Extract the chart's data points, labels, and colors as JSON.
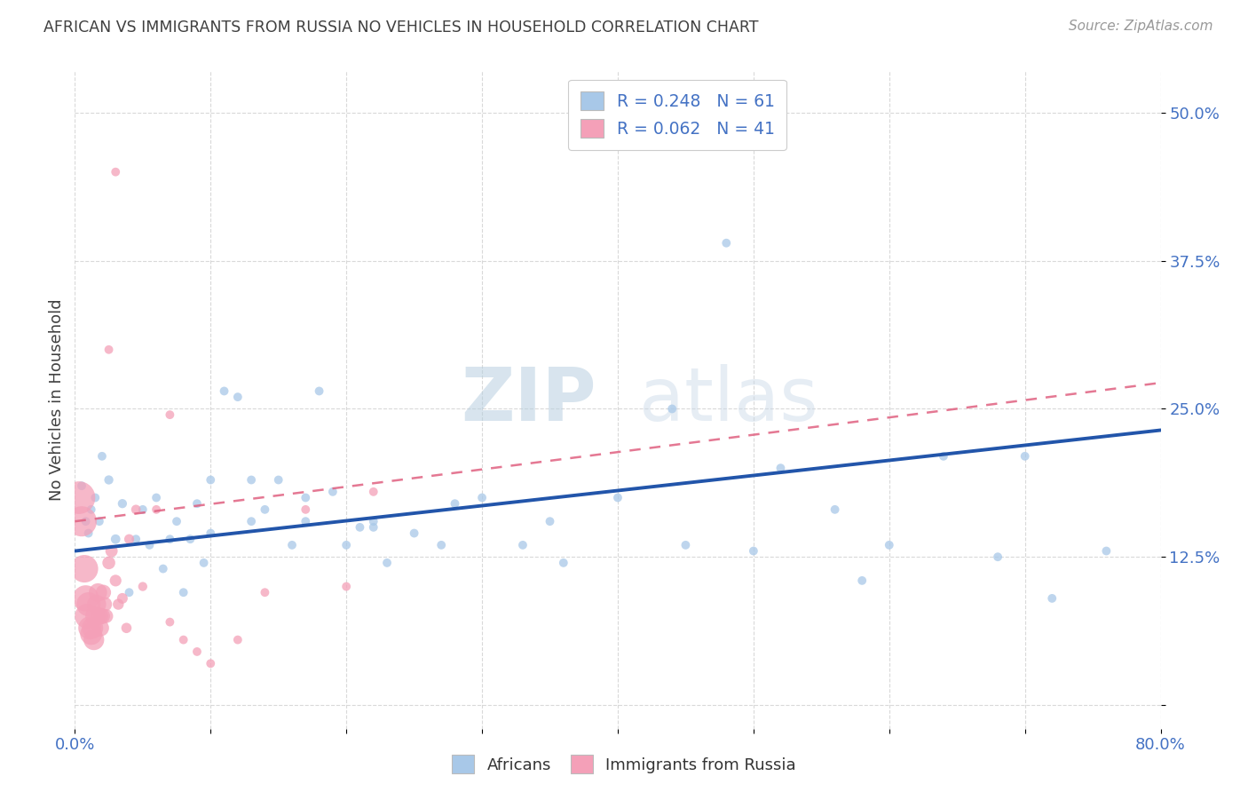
{
  "title": "AFRICAN VS IMMIGRANTS FROM RUSSIA NO VEHICLES IN HOUSEHOLD CORRELATION CHART",
  "source": "Source: ZipAtlas.com",
  "ylabel": "No Vehicles in Household",
  "xlim": [
    0.0,
    0.8
  ],
  "ylim": [
    -0.02,
    0.535
  ],
  "xticks": [
    0.0,
    0.1,
    0.2,
    0.3,
    0.4,
    0.5,
    0.6,
    0.7,
    0.8
  ],
  "xticklabels": [
    "0.0%",
    "",
    "",
    "",
    "",
    "",
    "",
    "",
    "80.0%"
  ],
  "yticks": [
    0.0,
    0.125,
    0.25,
    0.375,
    0.5
  ],
  "yticklabels": [
    "",
    "12.5%",
    "25.0%",
    "37.5%",
    "50.0%"
  ],
  "legend_label_african": "Africans",
  "legend_label_russia": "Immigrants from Russia",
  "watermark_zip": "ZIP",
  "watermark_atlas": "atlas",
  "african_color": "#a8c8e8",
  "african_line_color": "#2255aa",
  "russia_color": "#f4a0b8",
  "russia_line_color": "#e06080",
  "background_color": "#ffffff",
  "title_color": "#404040",
  "axis_label_color": "#404040",
  "tick_color": "#4472c4",
  "grid_color": "#d0d0d0",
  "african_line_x0": 0.0,
  "african_line_y0": 0.13,
  "african_line_x1": 0.8,
  "african_line_y1": 0.232,
  "russia_line_x0": 0.0,
  "russia_line_y0": 0.155,
  "russia_line_x1": 0.8,
  "russia_line_y1": 0.272,
  "african_x": [
    0.005,
    0.008,
    0.01,
    0.012,
    0.015,
    0.018,
    0.02,
    0.025,
    0.03,
    0.035,
    0.04,
    0.045,
    0.05,
    0.055,
    0.06,
    0.065,
    0.07,
    0.075,
    0.08,
    0.085,
    0.09,
    0.095,
    0.1,
    0.11,
    0.12,
    0.13,
    0.14,
    0.15,
    0.16,
    0.17,
    0.18,
    0.19,
    0.2,
    0.21,
    0.22,
    0.23,
    0.25,
    0.27,
    0.3,
    0.33,
    0.36,
    0.4,
    0.44,
    0.48,
    0.52,
    0.56,
    0.6,
    0.64,
    0.68,
    0.72,
    0.76,
    0.1,
    0.13,
    0.17,
    0.22,
    0.28,
    0.35,
    0.45,
    0.5,
    0.58,
    0.7
  ],
  "african_y": [
    0.185,
    0.155,
    0.145,
    0.165,
    0.175,
    0.155,
    0.21,
    0.19,
    0.14,
    0.17,
    0.095,
    0.14,
    0.165,
    0.135,
    0.175,
    0.115,
    0.14,
    0.155,
    0.095,
    0.14,
    0.17,
    0.12,
    0.145,
    0.265,
    0.26,
    0.155,
    0.165,
    0.19,
    0.135,
    0.155,
    0.265,
    0.18,
    0.135,
    0.15,
    0.155,
    0.12,
    0.145,
    0.135,
    0.175,
    0.135,
    0.12,
    0.175,
    0.25,
    0.39,
    0.2,
    0.165,
    0.135,
    0.21,
    0.125,
    0.09,
    0.13,
    0.19,
    0.19,
    0.175,
    0.15,
    0.17,
    0.155,
    0.135,
    0.13,
    0.105,
    0.21
  ],
  "african_size": [
    50,
    50,
    50,
    50,
    50,
    50,
    50,
    55,
    60,
    55,
    50,
    50,
    50,
    50,
    50,
    50,
    50,
    50,
    50,
    50,
    50,
    50,
    50,
    50,
    50,
    50,
    50,
    50,
    50,
    50,
    50,
    50,
    50,
    50,
    50,
    50,
    50,
    50,
    50,
    50,
    50,
    50,
    50,
    50,
    50,
    50,
    50,
    50,
    50,
    50,
    50,
    50,
    50,
    50,
    50,
    50,
    50,
    50,
    50,
    50,
    50
  ],
  "russia_x": [
    0.003,
    0.005,
    0.007,
    0.008,
    0.009,
    0.01,
    0.011,
    0.012,
    0.013,
    0.014,
    0.015,
    0.016,
    0.017,
    0.018,
    0.019,
    0.02,
    0.021,
    0.022,
    0.023,
    0.025,
    0.027,
    0.03,
    0.032,
    0.035,
    0.038,
    0.04,
    0.045,
    0.05,
    0.06,
    0.07,
    0.08,
    0.09,
    0.1,
    0.12,
    0.14,
    0.17,
    0.2,
    0.22,
    0.025,
    0.03,
    0.07
  ],
  "russia_y": [
    0.175,
    0.155,
    0.115,
    0.09,
    0.075,
    0.085,
    0.065,
    0.06,
    0.065,
    0.055,
    0.075,
    0.085,
    0.095,
    0.075,
    0.065,
    0.075,
    0.095,
    0.085,
    0.075,
    0.12,
    0.13,
    0.105,
    0.085,
    0.09,
    0.065,
    0.14,
    0.165,
    0.1,
    0.165,
    0.07,
    0.055,
    0.045,
    0.035,
    0.055,
    0.095,
    0.165,
    0.1,
    0.18,
    0.3,
    0.45,
    0.245
  ],
  "russia_size": [
    700,
    600,
    500,
    450,
    400,
    380,
    350,
    320,
    300,
    280,
    260,
    240,
    220,
    200,
    185,
    170,
    155,
    140,
    130,
    110,
    100,
    90,
    80,
    75,
    70,
    65,
    60,
    55,
    50,
    50,
    50,
    50,
    50,
    50,
    50,
    50,
    50,
    50,
    50,
    50,
    50
  ]
}
